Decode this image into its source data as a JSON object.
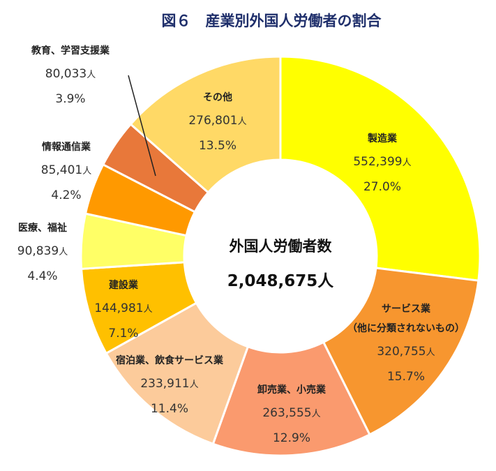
{
  "chart_data": {
    "type": "pie",
    "title": "図６　産業別外国人労働者の割合",
    "center_label": "外国人労働者数",
    "center_value": "2,048,675",
    "unit": "人",
    "slices": [
      {
        "label": "製造業",
        "value": 552399,
        "value_text": "552,399",
        "percent": "27.0%",
        "color": "#ffff00"
      },
      {
        "label": "サービス業",
        "label2": "（他に分類されないもの）",
        "value": 320755,
        "value_text": "320,755",
        "percent": "15.7%",
        "color": "#f7962f"
      },
      {
        "label": "卸売業、小売業",
        "value": 263555,
        "value_text": "263,555",
        "percent": "12.9%",
        "color": "#fa9a6e"
      },
      {
        "label": "宿泊業、飲食サービス業",
        "value": 233911,
        "value_text": "233,911",
        "percent": "11.4%",
        "color": "#fccb9b"
      },
      {
        "label": "建設業",
        "value": 144981,
        "value_text": "144,981",
        "percent": "7.1%",
        "color": "#ffc000"
      },
      {
        "label": "医療、福祉",
        "value": 90839,
        "value_text": "90,839",
        "percent": "4.4%",
        "color": "#ffff66"
      },
      {
        "label": "情報通信業",
        "value": 85401,
        "value_text": "85,401",
        "percent": "4.2%",
        "color": "#ff9900"
      },
      {
        "label": "教育、学習支援業",
        "value": 80033,
        "value_text": "80,033",
        "percent": "3.9%",
        "color": "#e8783a"
      },
      {
        "label": "その他",
        "value": 276801,
        "value_text": "276,801",
        "percent": "13.5%",
        "color": "#ffd966"
      }
    ]
  }
}
